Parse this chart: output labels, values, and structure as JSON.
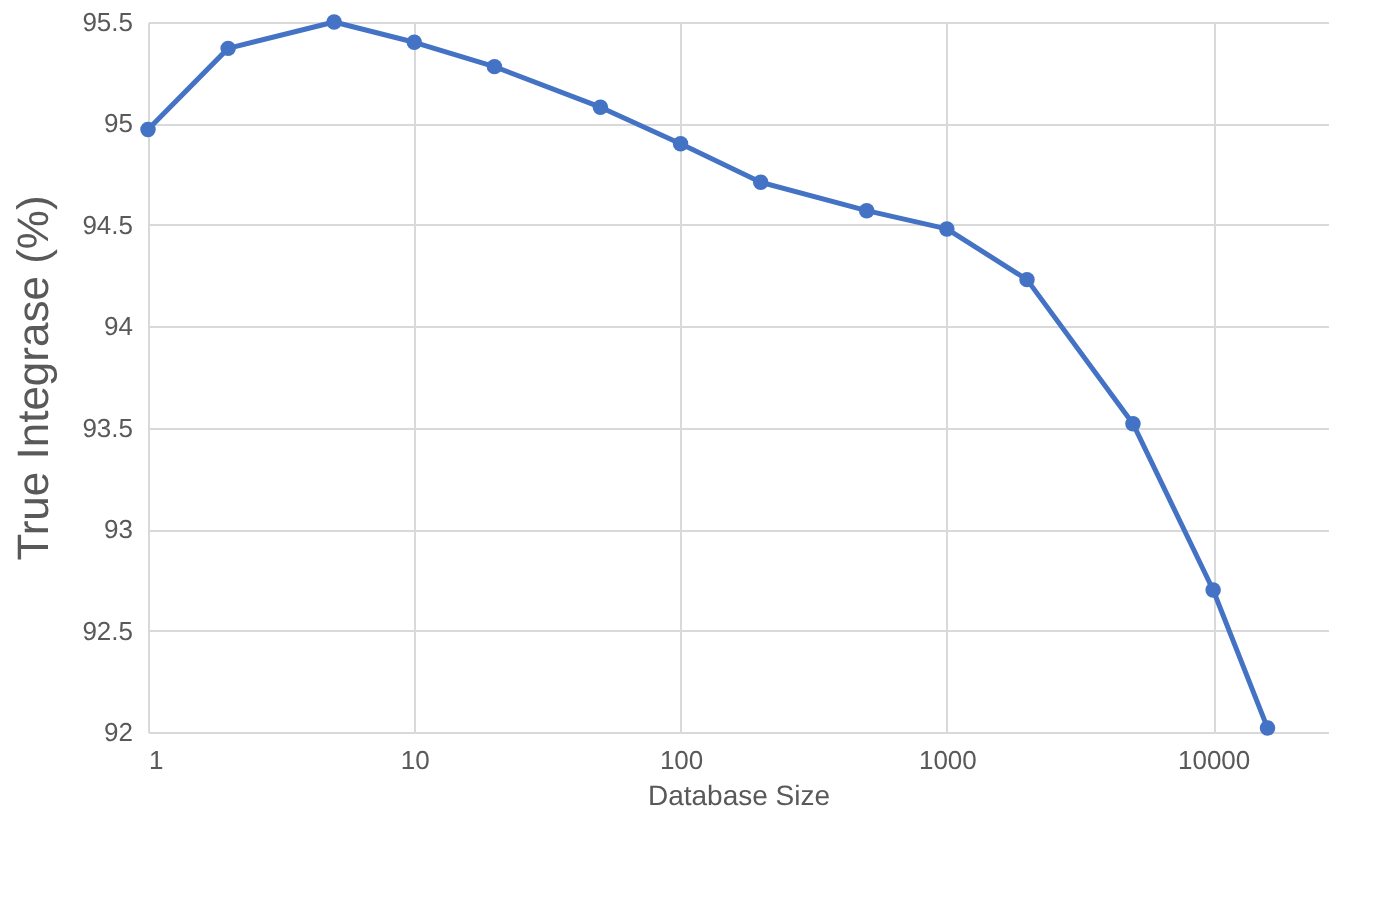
{
  "chart_data": {
    "type": "line",
    "xlabel": "Database Size",
    "ylabel": "True Integrase (%)",
    "x": [
      1,
      2,
      5,
      10,
      20,
      50,
      100,
      200,
      500,
      1000,
      2000,
      5000,
      10000,
      16000
    ],
    "series": [
      {
        "color": "#4472c4",
        "values": [
          94.97,
          95.37,
          95.5,
          95.4,
          95.28,
          95.08,
          94.9,
          94.71,
          94.57,
          94.48,
          94.23,
          93.52,
          92.7,
          92.02
        ]
      }
    ],
    "log": "x",
    "xlim": [
      1,
      27000
    ],
    "xticks": [
      1,
      10,
      100,
      1000,
      10000
    ],
    "ylim": [
      92,
      95.5
    ],
    "yticks": [
      92,
      92.5,
      93,
      93.5,
      94,
      94.5,
      95,
      95.5
    ],
    "grid": true,
    "marker": "circle",
    "line_style": "solid",
    "legend": false
  }
}
